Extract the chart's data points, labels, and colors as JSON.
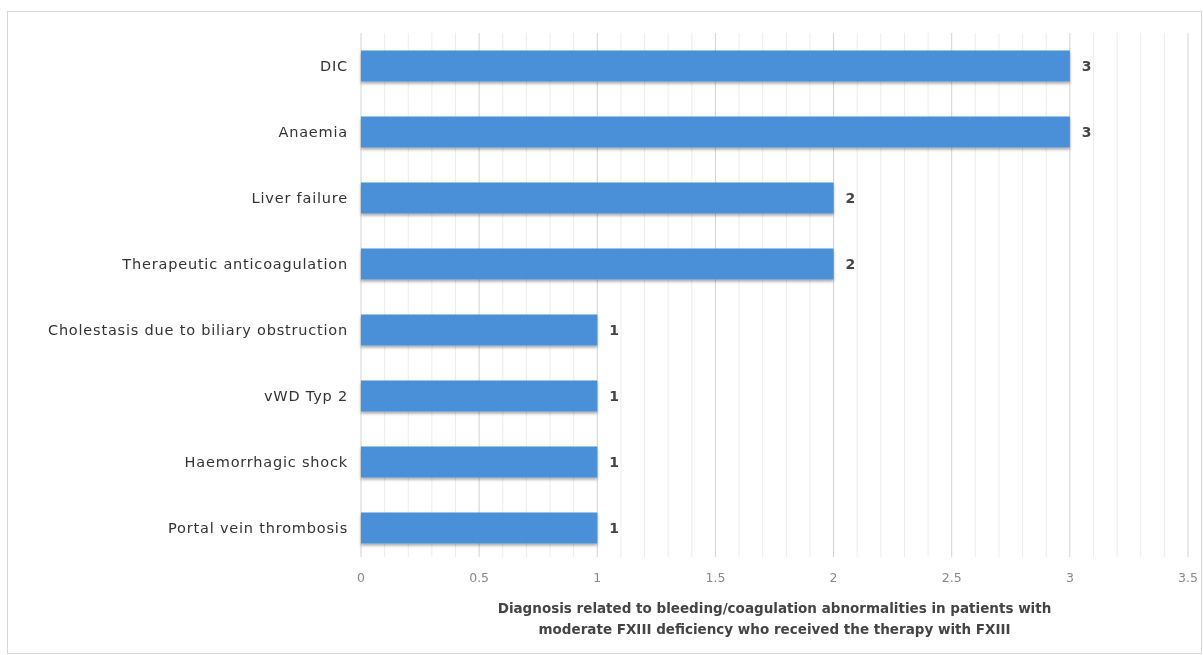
{
  "chart_data": {
    "type": "bar",
    "orientation": "horizontal",
    "categories": [
      "DIC",
      "Anaemia",
      "Liver failure",
      "Therapeutic anticoagulation",
      "Cholestasis due to biliary obstruction",
      "vWD Typ 2",
      "Haemorrhagic shock",
      "Portal vein thrombosis"
    ],
    "values": [
      3,
      3,
      2,
      2,
      1,
      1,
      1,
      1
    ],
    "color": "#4a90d9",
    "data_labels": true,
    "xlim": [
      0,
      3.5
    ],
    "xticks": [
      0,
      {
        "value": 0.1,
        "label": null
      },
      {
        "value": 0.2,
        "label": null
      },
      {
        "value": 0.3,
        "label": null
      },
      {
        "value": 0.4,
        "label": null
      },
      0.5,
      {
        "value": 0.6,
        "label": null
      },
      {
        "value": 0.7,
        "label": null
      },
      {
        "value": 0.8,
        "label": null
      },
      {
        "value": 0.9,
        "label": null
      },
      1,
      {
        "value": 1.1,
        "label": null
      },
      {
        "value": 1.2,
        "label": null
      },
      {
        "value": 1.3,
        "label": null
      },
      {
        "value": 1.4,
        "label": null
      },
      1.5,
      {
        "value": 1.6,
        "label": null
      },
      {
        "value": 1.7,
        "label": null
      },
      {
        "value": 1.8,
        "label": null
      },
      {
        "value": 1.9,
        "label": null
      },
      2,
      {
        "value": 2.1,
        "label": null
      },
      {
        "value": 2.2,
        "label": null
      },
      {
        "value": 2.3,
        "label": null
      },
      {
        "value": 2.4,
        "label": null
      },
      2.5,
      {
        "value": 2.6,
        "label": null
      },
      {
        "value": 2.7,
        "label": null
      },
      {
        "value": 2.8,
        "label": null
      },
      {
        "value": 2.9,
        "label": null
      },
      3,
      {
        "value": 3.1,
        "label": null
      },
      {
        "value": 3.2,
        "label": null
      },
      {
        "value": 3.3,
        "label": null
      },
      {
        "value": 3.4,
        "label": null
      },
      3.5
    ],
    "xlabel": "Diagnosis related to bleeding/coagulation abnormalities in patients with moderate FXIII deficiency who received the therapy with FXIII",
    "grid": "x"
  }
}
